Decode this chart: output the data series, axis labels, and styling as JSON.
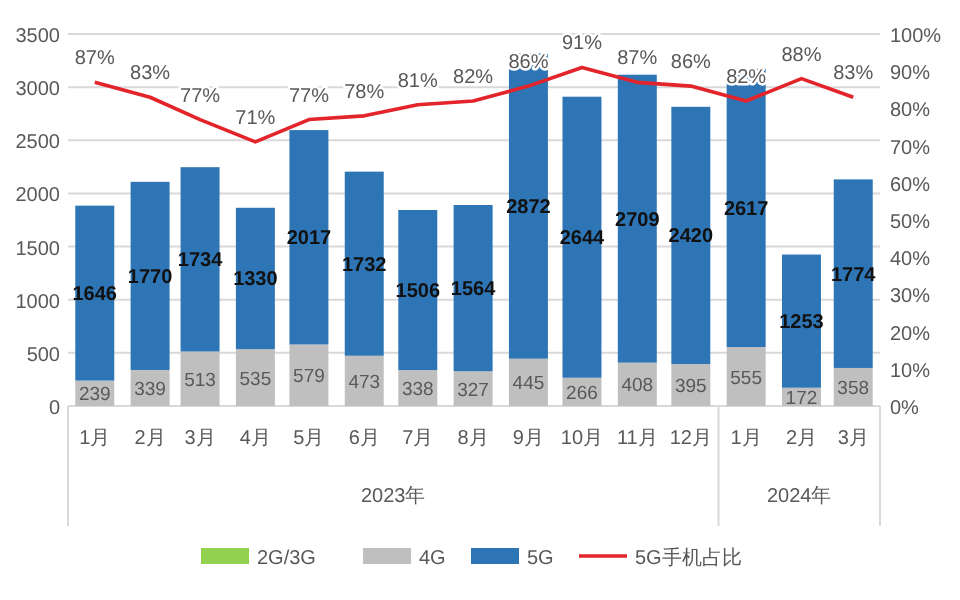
{
  "chart_data": {
    "type": "bar",
    "stacked": true,
    "x": [
      "2023-01",
      "2023-02",
      "2023-03",
      "2023-04",
      "2023-05",
      "2023-06",
      "2023-07",
      "2023-08",
      "2023-09",
      "2023-10",
      "2023-11",
      "2023-12",
      "2024-01",
      "2024-02",
      "2024-03"
    ],
    "xticks": [
      {
        "value": "2023-01",
        "label": "1月"
      },
      {
        "value": "2023-02",
        "label": "2月"
      },
      {
        "value": "2023-03",
        "label": "3月"
      },
      {
        "value": "2023-04",
        "label": "4月"
      },
      {
        "value": "2023-05",
        "label": "5月"
      },
      {
        "value": "2023-06",
        "label": "6月"
      },
      {
        "value": "2023-07",
        "label": "7月"
      },
      {
        "value": "2023-08",
        "label": "8月"
      },
      {
        "value": "2023-09",
        "label": "9月"
      },
      {
        "value": "2023-10",
        "label": "10月"
      },
      {
        "value": "2023-11",
        "label": "11月"
      },
      {
        "value": "2023-12",
        "label": "12月"
      },
      {
        "value": "2024-01",
        "label": "1月"
      },
      {
        "value": "2024-02",
        "label": "2月"
      },
      {
        "value": "2024-03",
        "label": "3月"
      }
    ],
    "series": [
      {
        "name": "2G/3G",
        "color": "#92d050",
        "values": [
          null,
          null,
          null,
          null,
          null,
          null,
          null,
          null,
          null,
          null,
          null,
          null,
          null,
          null,
          null
        ]
      },
      {
        "name": "4G",
        "color": "#bfbfbf",
        "values": [
          239,
          339,
          513,
          535,
          579,
          473,
          338,
          327,
          445,
          266,
          408,
          395,
          555,
          172,
          358
        ]
      },
      {
        "name": "5G",
        "color": "#2e75b6",
        "values": [
          1646,
          1770,
          1734,
          1330,
          2017,
          1732,
          1506,
          1564,
          2872,
          2644,
          2709,
          2420,
          2617,
          1253,
          1774
        ]
      },
      {
        "name": "5G手机占比",
        "type": "line",
        "axis": "y2",
        "color": "#e3242b",
        "values": [
          87,
          83,
          77,
          71,
          77,
          78,
          81,
          82,
          86,
          91,
          87,
          86,
          82,
          88,
          83
        ],
        "value_labels": [
          "87%",
          "83%",
          "77%",
          "71%",
          "77%",
          "78%",
          "81%",
          "82%",
          "86%",
          "91%",
          "87%",
          "86%",
          "82%",
          "88%",
          "83%"
        ]
      }
    ],
    "xlim": [
      "2022-12-17",
      "2024-03-16"
    ],
    "ylim": [
      0,
      3500
    ],
    "yticks": [
      0,
      500,
      1000,
      1500,
      2000,
      2500,
      3000,
      3500
    ],
    "y2lim": [
      0,
      100
    ],
    "y2ticks": [
      {
        "value": 0,
        "label": "0%"
      },
      {
        "value": 10,
        "label": "10%"
      },
      {
        "value": 20,
        "label": "20%"
      },
      {
        "value": 30,
        "label": "30%"
      },
      {
        "value": 40,
        "label": "40%"
      },
      {
        "value": 50,
        "label": "50%"
      },
      {
        "value": 60,
        "label": "60%"
      },
      {
        "value": 70,
        "label": "70%"
      },
      {
        "value": 80,
        "label": "80%"
      },
      {
        "value": 90,
        "label": "90%"
      },
      {
        "value": 100,
        "label": "100%"
      }
    ],
    "grid": "y",
    "legend": "bottom",
    "data_labels": true,
    "annotations": [
      "2023年",
      "2024年"
    ]
  }
}
